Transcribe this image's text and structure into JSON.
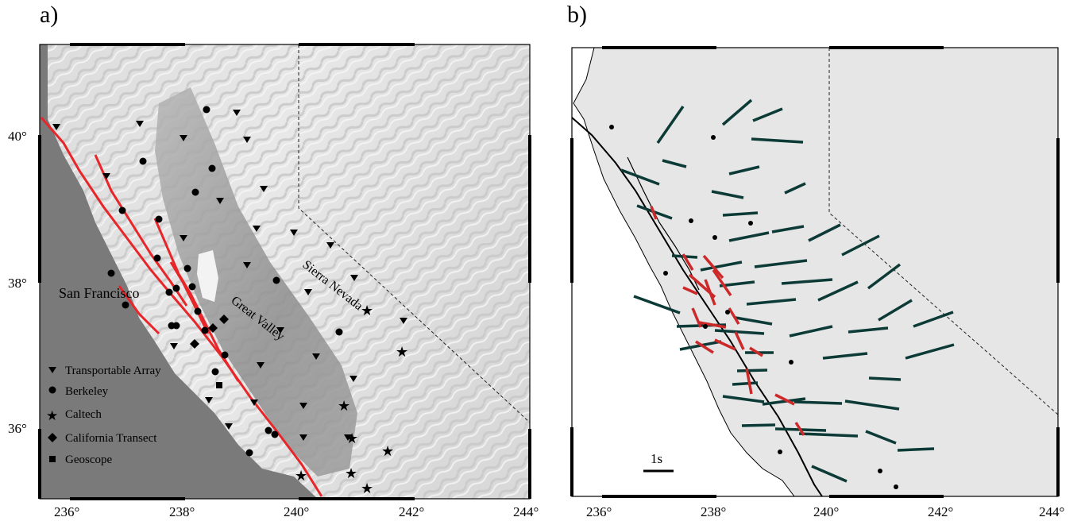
{
  "panel_a": {
    "label": "a)",
    "x_ticks": [
      "236°",
      "238°",
      "240°",
      "242°",
      "244°"
    ],
    "y_ticks": [
      "40°",
      "38°",
      "36°"
    ],
    "places": {
      "city": "San Francisco",
      "valley": "Great Valley",
      "range": "Sierra Nevada"
    },
    "legend": [
      {
        "symbol": "triangle-down",
        "label": "Transportable Array"
      },
      {
        "symbol": "circle",
        "label": "Berkeley"
      },
      {
        "symbol": "star",
        "label": "Caltech"
      },
      {
        "symbol": "diamond",
        "label": "California Transect"
      },
      {
        "symbol": "square",
        "label": "Geoscope"
      }
    ],
    "fault_color": "#e8262a"
  },
  "panel_b": {
    "label": "b)",
    "x_ticks": [
      "236°",
      "238°",
      "240°",
      "242°",
      "244°"
    ],
    "scale_label": "1s",
    "land_color": "#e6e6e6",
    "bar_color": "#0c3a36",
    "highlight_color": "#cc2a2a"
  }
}
